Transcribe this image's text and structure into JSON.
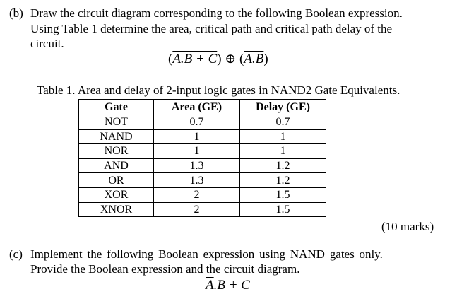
{
  "part_b": {
    "label": "(b)",
    "line1": "Draw the circuit diagram corresponding to the following Boolean expression.",
    "line2": "Using Table 1 determine the area, critical path and critical path delay of the",
    "line3": "circuit."
  },
  "expression_b": {
    "lhs_inner": "A.B + C",
    "xor_symbol": "⊕",
    "rhs_inner": "A.B"
  },
  "table": {
    "caption": "Table 1. Area and delay of 2-input logic gates in NAND2 Gate Equivalents.",
    "headers": [
      "Gate",
      "Area (GE)",
      "Delay (GE)"
    ],
    "rows": [
      [
        "NOT",
        "0.7",
        "0.7"
      ],
      [
        "NAND",
        "1",
        "1"
      ],
      [
        "NOR",
        "1",
        "1"
      ],
      [
        "AND",
        "1.3",
        "1.2"
      ],
      [
        "OR",
        "1.3",
        "1.2"
      ],
      [
        "XOR",
        "2",
        "1.5"
      ],
      [
        "XNOR",
        "2",
        "1.5"
      ]
    ]
  },
  "marks": "(10 marks)",
  "part_c": {
    "label": "(c)",
    "line1": "Implement the following Boolean expression using NAND gates only.",
    "line2": "Provide the Boolean expression and the circuit diagram."
  },
  "expression_c": {
    "a": "A",
    "rest": ".B + C"
  }
}
